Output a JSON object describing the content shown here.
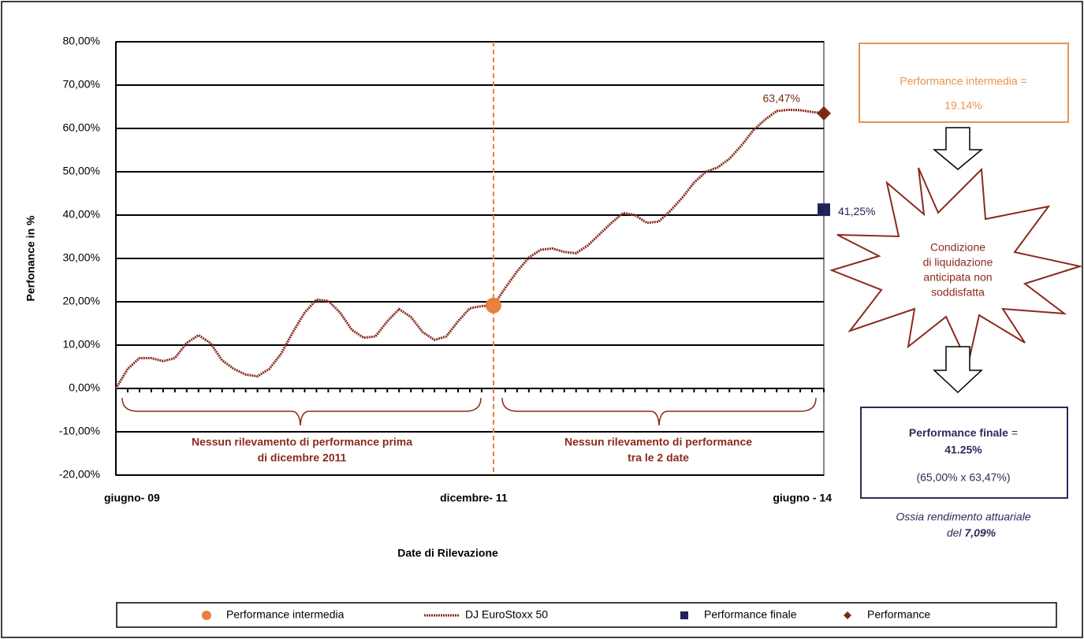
{
  "chart_data": {
    "type": "line",
    "y_label": "Perfonance in %",
    "x_label": "Date di Rilevazione",
    "categories": [
      "giugno- 09",
      null,
      null,
      null,
      null,
      null,
      null,
      null,
      null,
      null,
      null,
      null,
      null,
      null,
      null,
      null,
      null,
      null,
      null,
      null,
      null,
      null,
      null,
      null,
      null,
      null,
      null,
      null,
      null,
      null,
      null,
      null,
      "dicembre- 11",
      null,
      null,
      null,
      null,
      null,
      null,
      null,
      null,
      null,
      null,
      null,
      null,
      null,
      null,
      null,
      null,
      null,
      null,
      null,
      null,
      null,
      null,
      null,
      null,
      null,
      null,
      null,
      "giugno - 14"
    ],
    "ylim": [
      -20,
      80
    ],
    "yticks": [
      {
        "value": -20,
        "label": "-20,00%"
      },
      {
        "value": -10,
        "label": "-10,00%"
      },
      {
        "value": 0,
        "label": "0,00%"
      },
      {
        "value": 10,
        "label": "10,00%"
      },
      {
        "value": 20,
        "label": "20,00%"
      },
      {
        "value": 30,
        "label": "30,00%"
      },
      {
        "value": 40,
        "label": "40,00%"
      },
      {
        "value": 50,
        "label": "50,00%"
      },
      {
        "value": 60,
        "label": "60,00%"
      },
      {
        "value": 70,
        "label": "70,00%"
      },
      {
        "value": 80,
        "label": "80,00%"
      }
    ],
    "grid": true,
    "series": [
      {
        "name": "Performance intermedia",
        "color": "#e8803f",
        "marker": "circle",
        "values": [
          null,
          null,
          null,
          null,
          null,
          null,
          null,
          null,
          null,
          null,
          null,
          null,
          null,
          null,
          null,
          null,
          null,
          null,
          null,
          null,
          null,
          null,
          null,
          null,
          null,
          null,
          null,
          null,
          null,
          null,
          null,
          null,
          19.14,
          null,
          null,
          null,
          null,
          null,
          null,
          null,
          null,
          null,
          null,
          null,
          null,
          null,
          null,
          null,
          null,
          null,
          null,
          null,
          null,
          null,
          null,
          null,
          null,
          null,
          null,
          null,
          null
        ]
      },
      {
        "name": "DJ EuroStoxx 50",
        "color": "#8b2a1e",
        "marker": "line",
        "values": [
          0,
          4.5,
          7,
          7,
          6.3,
          7,
          10.5,
          12.3,
          10.5,
          6.5,
          4.5,
          3.2,
          2.8,
          4.5,
          8,
          13,
          17.5,
          20.5,
          20.2,
          17.5,
          13.5,
          11.7,
          12,
          15.5,
          18.3,
          16.5,
          13,
          11.2,
          12,
          15.5,
          18.5,
          19,
          19.14,
          23.2,
          27,
          30.2,
          32,
          32.3,
          31.5,
          31.2,
          33,
          35.6,
          38.2,
          40.5,
          40,
          38.2,
          38.5,
          41,
          44,
          47.5,
          50,
          51,
          53,
          56,
          59.5,
          62,
          64,
          64.3,
          64.2,
          63.8,
          63.47
        ]
      },
      {
        "name": "Performance finale",
        "color": "#22225a",
        "marker": "square",
        "values": [
          null,
          null,
          null,
          null,
          null,
          null,
          null,
          null,
          null,
          null,
          null,
          null,
          null,
          null,
          null,
          null,
          null,
          null,
          null,
          null,
          null,
          null,
          null,
          null,
          null,
          null,
          null,
          null,
          null,
          null,
          null,
          null,
          null,
          null,
          null,
          null,
          null,
          null,
          null,
          null,
          null,
          null,
          null,
          null,
          null,
          null,
          null,
          null,
          null,
          null,
          null,
          null,
          null,
          null,
          null,
          null,
          null,
          null,
          null,
          null,
          41.25
        ],
        "value_labels": {
          "60": "41,25%"
        }
      },
      {
        "name": "Performance",
        "color": "#7b2a1a",
        "marker": "diamond",
        "values": [
          null,
          null,
          null,
          null,
          null,
          null,
          null,
          null,
          null,
          null,
          null,
          null,
          null,
          null,
          null,
          null,
          null,
          null,
          null,
          null,
          null,
          null,
          null,
          null,
          null,
          null,
          null,
          null,
          null,
          null,
          null,
          null,
          null,
          null,
          null,
          null,
          null,
          null,
          null,
          null,
          null,
          null,
          null,
          null,
          null,
          null,
          null,
          null,
          null,
          null,
          null,
          null,
          null,
          null,
          null,
          null,
          null,
          null,
          null,
          null,
          63.47
        ],
        "value_labels": {
          "60": "63,47%"
        }
      }
    ],
    "annotations": {
      "before": [
        "Nessun rilevamento di performance prima",
        "di dicembre 2011"
      ],
      "between": [
        "Nessun rilevamento di performance",
        "tra le 2 date"
      ],
      "intermediate_box": [
        "Performance intermedia =",
        "19.14%"
      ],
      "condition": [
        "Condizione",
        "di liquidazione",
        "anticipata non",
        "soddisfatta"
      ],
      "final_box": {
        "label": "Performance finale",
        "eq": "=",
        "value": "41.25%",
        "formula": "(65,00% x 63,47%)"
      },
      "yield": {
        "line1": "Ossia rendimento attuariale",
        "prefix": "del",
        "value": "7,09%"
      }
    }
  }
}
